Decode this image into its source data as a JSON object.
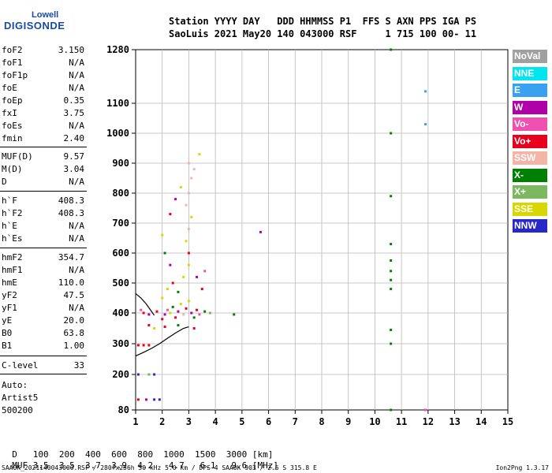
{
  "logo": {
    "brand_top": "Lowell",
    "brand_main": "DIGISONDE"
  },
  "header": {
    "line1": "Station YYYY DAY   DDD HHMMSS P1  FFS S AXN PPS IGA PS",
    "line2": "SaoLuis 2021 May20 140 043000 RSF     1 715 100 00- 11"
  },
  "parameters": [
    {
      "name": "foF2",
      "value": "3.150"
    },
    {
      "name": "foF1",
      "value": "N/A"
    },
    {
      "name": "foF1p",
      "value": "N/A"
    },
    {
      "name": "foE",
      "value": "N/A"
    },
    {
      "name": "foEp",
      "value": "0.35"
    },
    {
      "name": "fxI",
      "value": "3.75"
    },
    {
      "name": "foEs",
      "value": "N/A"
    },
    {
      "name": "fmin",
      "value": "2.40"
    },
    {
      "name": "MUF(D)",
      "value": "9.57"
    },
    {
      "name": "M(D)",
      "value": "3.04"
    },
    {
      "name": "D",
      "value": "N/A"
    },
    {
      "name": "h`F",
      "value": "408.3"
    },
    {
      "name": "h`F2",
      "value": "408.3"
    },
    {
      "name": "h`E",
      "value": "N/A"
    },
    {
      "name": "h`Es",
      "value": "N/A"
    },
    {
      "name": "hmF2",
      "value": "354.7"
    },
    {
      "name": "hmF1",
      "value": "N/A"
    },
    {
      "name": "hmE",
      "value": "110.0"
    },
    {
      "name": "yF2",
      "value": "47.5"
    },
    {
      "name": "yF1",
      "value": "N/A"
    },
    {
      "name": "yE",
      "value": "20.0"
    },
    {
      "name": "B0",
      "value": "63.8"
    },
    {
      "name": "B1",
      "value": "1.00"
    },
    {
      "name": "C-level",
      "value": "33"
    }
  ],
  "auto": {
    "label": "Auto:",
    "program": "Artist5",
    "version": "500200"
  },
  "legend": [
    {
      "label": "NoVal",
      "color": "#a0a0a0"
    },
    {
      "label": "NNE",
      "color": "#00e5ee"
    },
    {
      "label": "E",
      "color": "#3aa0f0"
    },
    {
      "label": "W",
      "color": "#b000a8"
    },
    {
      "label": "Vo-",
      "color": "#f050b0"
    },
    {
      "label": "Vo+",
      "color": "#e8001c"
    },
    {
      "label": "SSW",
      "color": "#f5b4a8"
    },
    {
      "label": "X-",
      "color": "#008000"
    },
    {
      "label": "X+",
      "color": "#7cb860"
    },
    {
      "label": "SSE",
      "color": "#d8d800"
    },
    {
      "label": "NNW",
      "color": "#2828c8"
    }
  ],
  "muf_table": {
    "d_label": "D",
    "d_values": [
      "100",
      "200",
      "400",
      "600",
      "800",
      "1000",
      "1500",
      "3000"
    ],
    "d_unit": "[km]",
    "muf_label": "MUF",
    "muf_values": [
      "3.5",
      "3.5",
      "3.7",
      "3.9",
      "4.2",
      "4.7",
      "6.1",
      "9.6"
    ],
    "muf_unit": "[MHz]"
  },
  "footer": {
    "left": "SAA0K_2021140043000.RSF / 280fx256h 50 kHz 5.0 km / DPS-4 SAA0K 903 / 2.6 S 315.8 E",
    "right": "Ion2Png 1.3.17"
  },
  "chart_data": {
    "type": "scatter",
    "x_ticks": [
      "1",
      "2",
      "3",
      "4",
      "5",
      "6",
      "7",
      "8",
      "9",
      "10",
      "11",
      "12",
      "13",
      "14",
      "15"
    ],
    "y_ticks": [
      "80",
      "200",
      "300",
      "400",
      "500",
      "600",
      "700",
      "800",
      "900",
      "1000",
      "1100",
      "1280"
    ],
    "xlim": [
      1,
      15
    ],
    "ylim": [
      80,
      1280
    ],
    "y_scale": "nonlinear (virtual height, km)",
    "grid": true,
    "profile_curve": {
      "color": "#000000",
      "x": [
        1.0,
        1.3,
        1.6,
        1.9,
        2.2,
        2.5,
        2.8,
        3.0
      ],
      "y": [
        260,
        272,
        285,
        300,
        318,
        335,
        350,
        355
      ]
    },
    "trace_curve": {
      "color": "#000000",
      "x": [
        1.0,
        1.2,
        1.4,
        1.6,
        1.7
      ],
      "y": [
        465,
        450,
        430,
        405,
        392
      ]
    },
    "echoes": [
      {
        "x": 2.0,
        "y": 380,
        "color": "#e8001c"
      },
      {
        "x": 2.1,
        "y": 395,
        "color": "#b000a8"
      },
      {
        "x": 2.2,
        "y": 410,
        "color": "#f050b0"
      },
      {
        "x": 2.3,
        "y": 400,
        "color": "#d8d800"
      },
      {
        "x": 2.4,
        "y": 420,
        "color": "#008000"
      },
      {
        "x": 2.5,
        "y": 385,
        "color": "#e8001c"
      },
      {
        "x": 2.6,
        "y": 405,
        "color": "#b000a8"
      },
      {
        "x": 2.7,
        "y": 430,
        "color": "#d8d800"
      },
      {
        "x": 2.8,
        "y": 395,
        "color": "#f5b4a8"
      },
      {
        "x": 2.9,
        "y": 415,
        "color": "#e8001c"
      },
      {
        "x": 3.0,
        "y": 440,
        "color": "#d8d800"
      },
      {
        "x": 3.1,
        "y": 400,
        "color": "#b000a8"
      },
      {
        "x": 3.2,
        "y": 385,
        "color": "#008000"
      },
      {
        "x": 3.3,
        "y": 410,
        "color": "#e8001c"
      },
      {
        "x": 3.4,
        "y": 395,
        "color": "#f050b0"
      },
      {
        "x": 3.6,
        "y": 405,
        "color": "#008000"
      },
      {
        "x": 3.8,
        "y": 400,
        "color": "#7cb860"
      },
      {
        "x": 1.8,
        "y": 405,
        "color": "#e8001c"
      },
      {
        "x": 1.5,
        "y": 395,
        "color": "#b000a8"
      },
      {
        "x": 1.3,
        "y": 400,
        "color": "#e8001c"
      },
      {
        "x": 1.2,
        "y": 410,
        "color": "#f050b0"
      },
      {
        "x": 2.0,
        "y": 450,
        "color": "#d8d800"
      },
      {
        "x": 2.2,
        "y": 480,
        "color": "#d8d800"
      },
      {
        "x": 2.4,
        "y": 500,
        "color": "#e8001c"
      },
      {
        "x": 2.6,
        "y": 470,
        "color": "#008000"
      },
      {
        "x": 2.8,
        "y": 520,
        "color": "#d8d800"
      },
      {
        "x": 3.0,
        "y": 560,
        "color": "#d8d800"
      },
      {
        "x": 3.0,
        "y": 600,
        "color": "#e8001c"
      },
      {
        "x": 2.9,
        "y": 640,
        "color": "#d8d800"
      },
      {
        "x": 3.0,
        "y": 680,
        "color": "#f5b4a8"
      },
      {
        "x": 3.1,
        "y": 720,
        "color": "#d8d800"
      },
      {
        "x": 2.9,
        "y": 760,
        "color": "#f5b4a8"
      },
      {
        "x": 3.0,
        "y": 800,
        "color": "#f5b4a8"
      },
      {
        "x": 3.1,
        "y": 850,
        "color": "#f5b4a8"
      },
      {
        "x": 3.0,
        "y": 900,
        "color": "#f5b4a8"
      },
      {
        "x": 3.4,
        "y": 930,
        "color": "#d8d800"
      },
      {
        "x": 3.2,
        "y": 880,
        "color": "#f5b4a8"
      },
      {
        "x": 2.7,
        "y": 820,
        "color": "#d8d800"
      },
      {
        "x": 2.5,
        "y": 780,
        "color": "#b000a8"
      },
      {
        "x": 2.3,
        "y": 730,
        "color": "#e8001c"
      },
      {
        "x": 2.0,
        "y": 660,
        "color": "#d8d800"
      },
      {
        "x": 2.1,
        "y": 600,
        "color": "#008000"
      },
      {
        "x": 2.3,
        "y": 560,
        "color": "#b000a8"
      },
      {
        "x": 3.3,
        "y": 520,
        "color": "#b000a8"
      },
      {
        "x": 3.5,
        "y": 480,
        "color": "#e8001c"
      },
      {
        "x": 3.6,
        "y": 540,
        "color": "#f050b0"
      },
      {
        "x": 1.5,
        "y": 360,
        "color": "#e8001c"
      },
      {
        "x": 1.7,
        "y": 350,
        "color": "#d8d800"
      },
      {
        "x": 2.1,
        "y": 355,
        "color": "#e8001c"
      },
      {
        "x": 2.6,
        "y": 360,
        "color": "#008000"
      },
      {
        "x": 3.2,
        "y": 350,
        "color": "#e8001c"
      },
      {
        "x": 4.7,
        "y": 395,
        "color": "#008000"
      },
      {
        "x": 5.7,
        "y": 670,
        "color": "#b000a8"
      },
      {
        "x": 1.1,
        "y": 295,
        "color": "#e8001c"
      },
      {
        "x": 1.3,
        "y": 295,
        "color": "#e8001c"
      },
      {
        "x": 1.5,
        "y": 295,
        "color": "#e8001c"
      },
      {
        "x": 1.1,
        "y": 200,
        "color": "#2828c8"
      },
      {
        "x": 1.5,
        "y": 200,
        "color": "#7cb860"
      },
      {
        "x": 1.7,
        "y": 200,
        "color": "#2828c8"
      },
      {
        "x": 1.1,
        "y": 115,
        "color": "#e8001c"
      },
      {
        "x": 1.4,
        "y": 115,
        "color": "#b000a8"
      },
      {
        "x": 1.7,
        "y": 115,
        "color": "#2828c8"
      },
      {
        "x": 1.9,
        "y": 115,
        "color": "#2828c8"
      },
      {
        "x": 10.6,
        "y": 1280,
        "color": "#008000"
      },
      {
        "x": 10.6,
        "y": 1000,
        "color": "#008000"
      },
      {
        "x": 10.6,
        "y": 790,
        "color": "#008000"
      },
      {
        "x": 10.6,
        "y": 630,
        "color": "#008000"
      },
      {
        "x": 10.6,
        "y": 575,
        "color": "#008000"
      },
      {
        "x": 10.6,
        "y": 540,
        "color": "#008000"
      },
      {
        "x": 10.6,
        "y": 510,
        "color": "#008000"
      },
      {
        "x": 10.6,
        "y": 480,
        "color": "#008000"
      },
      {
        "x": 10.6,
        "y": 345,
        "color": "#008000"
      },
      {
        "x": 10.6,
        "y": 300,
        "color": "#008000"
      },
      {
        "x": 10.6,
        "y": 80,
        "color": "#008000"
      },
      {
        "x": 11.9,
        "y": 1140,
        "color": "#3aa0f0"
      },
      {
        "x": 11.9,
        "y": 1030,
        "color": "#3aa0f0"
      },
      {
        "x": 11.9,
        "y": 80,
        "color": "#f050b0"
      }
    ]
  }
}
